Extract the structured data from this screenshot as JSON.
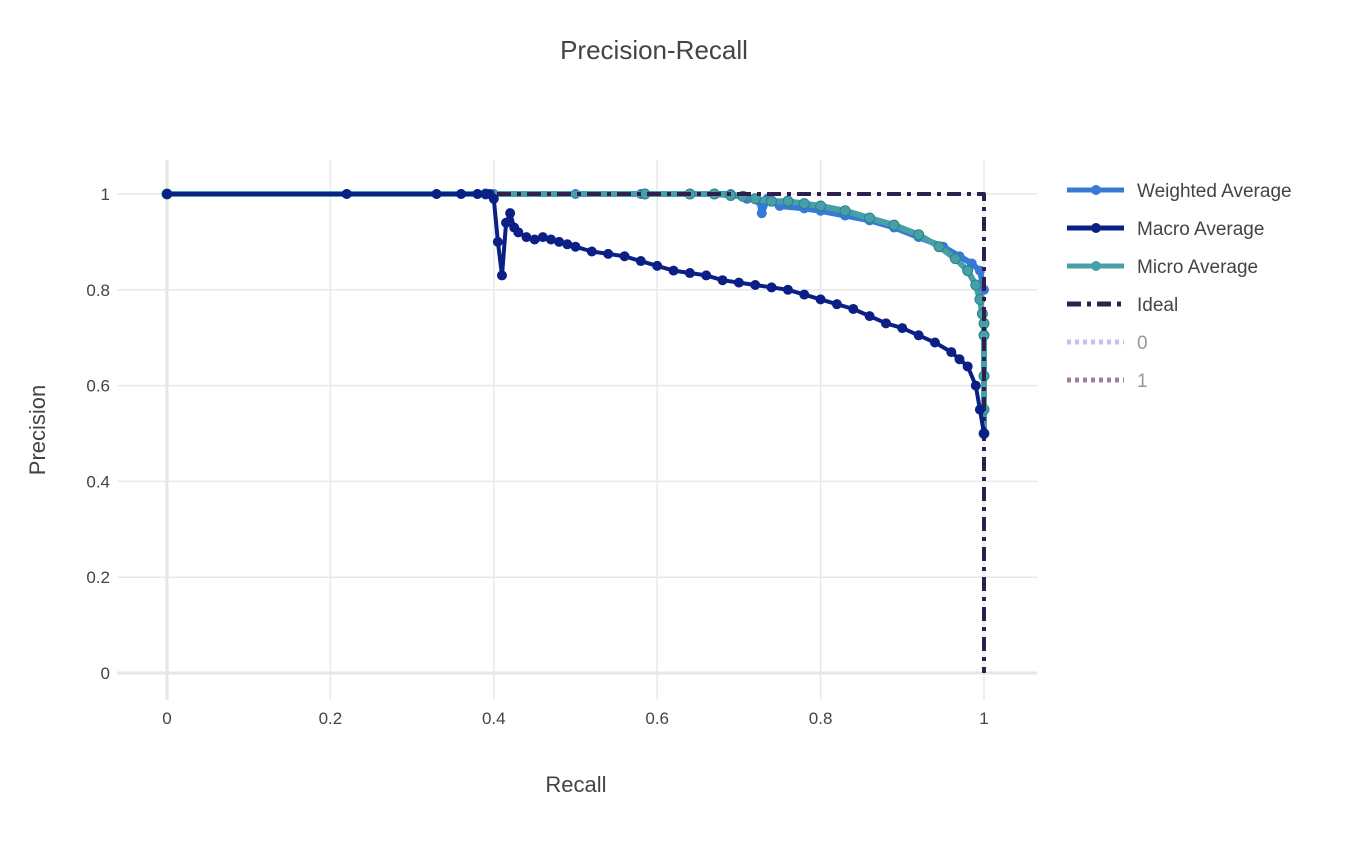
{
  "chart_data": {
    "type": "line",
    "title": "Precision-Recall",
    "xlabel": "Recall",
    "ylabel": "Precision",
    "xlim": [
      -0.06,
      1.06
    ],
    "ylim": [
      -0.06,
      1.07
    ],
    "xticks": [
      0,
      0.2,
      0.4,
      0.6,
      0.8,
      1
    ],
    "xtick_labels": [
      "0",
      "0.2",
      "0.4",
      "0.6",
      "0.8",
      "1"
    ],
    "yticks": [
      0,
      0.2,
      0.4,
      0.6,
      0.8,
      1
    ],
    "ytick_labels": [
      "0",
      "0.2",
      "0.4",
      "0.6",
      "0.8",
      "1"
    ],
    "grid": true,
    "legend_position": "right",
    "series": [
      {
        "name": "Weighted Average",
        "color": "#3878d6",
        "dash": "solid",
        "markers": true,
        "x": [
          0,
          0.22,
          0.33,
          0.36,
          0.38,
          0.39,
          0.4,
          0.5,
          0.58,
          0.64,
          0.67,
          0.69,
          0.71,
          0.72,
          0.725,
          0.728,
          0.735,
          0.75,
          0.78,
          0.8,
          0.83,
          0.86,
          0.89,
          0.92,
          0.95,
          0.97,
          0.985,
          0.995,
          1.0
        ],
        "y": [
          1,
          1,
          1,
          1,
          1,
          1,
          1,
          1,
          1,
          1,
          1,
          1,
          0.99,
          0.99,
          0.985,
          0.96,
          0.99,
          0.975,
          0.97,
          0.965,
          0.955,
          0.945,
          0.93,
          0.91,
          0.89,
          0.87,
          0.855,
          0.84,
          0.8
        ]
      },
      {
        "name": "Macro Average",
        "color": "#0b1f86",
        "dash": "solid",
        "markers": true,
        "x": [
          0,
          0.22,
          0.33,
          0.36,
          0.38,
          0.39,
          0.395,
          0.4,
          0.405,
          0.41,
          0.415,
          0.42,
          0.425,
          0.43,
          0.44,
          0.45,
          0.46,
          0.47,
          0.48,
          0.49,
          0.5,
          0.52,
          0.54,
          0.56,
          0.58,
          0.6,
          0.62,
          0.64,
          0.66,
          0.68,
          0.7,
          0.72,
          0.74,
          0.76,
          0.78,
          0.8,
          0.82,
          0.84,
          0.86,
          0.88,
          0.9,
          0.92,
          0.94,
          0.96,
          0.97,
          0.98,
          0.99,
          0.995,
          1.0
        ],
        "y": [
          1,
          1,
          1,
          1,
          1,
          1,
          1,
          0.99,
          0.9,
          0.83,
          0.94,
          0.96,
          0.93,
          0.92,
          0.91,
          0.905,
          0.91,
          0.905,
          0.9,
          0.895,
          0.89,
          0.88,
          0.875,
          0.87,
          0.86,
          0.85,
          0.84,
          0.835,
          0.83,
          0.82,
          0.815,
          0.81,
          0.805,
          0.8,
          0.79,
          0.78,
          0.77,
          0.76,
          0.745,
          0.73,
          0.72,
          0.705,
          0.69,
          0.67,
          0.655,
          0.64,
          0.6,
          0.55,
          0.5
        ]
      },
      {
        "name": "Micro Average",
        "color": "#46a0a8",
        "dash": "solid",
        "markers": true,
        "x": [
          0,
          0.39,
          0.585,
          0.64,
          0.67,
          0.69,
          0.705,
          0.72,
          0.74,
          0.76,
          0.78,
          0.8,
          0.83,
          0.86,
          0.89,
          0.92,
          0.945,
          0.965,
          0.98,
          0.99,
          0.995,
          0.998,
          1.0,
          1.0,
          1.0,
          1.0,
          1.0
        ],
        "y": [
          1,
          1,
          1,
          1,
          1,
          0.997,
          0.995,
          0.99,
          0.985,
          0.985,
          0.98,
          0.975,
          0.965,
          0.95,
          0.935,
          0.915,
          0.89,
          0.865,
          0.84,
          0.81,
          0.78,
          0.75,
          0.73,
          0.705,
          0.62,
          0.55,
          0.5
        ]
      },
      {
        "name": "Ideal",
        "color": "#2f1f4f",
        "dash": "dashdot",
        "markers": false,
        "x": [
          0,
          1,
          1
        ],
        "y": [
          1,
          1,
          0
        ]
      },
      {
        "name": "0",
        "color": "#c5c0ee",
        "dash": "dot",
        "markers": false,
        "faded": true,
        "x": [
          0,
          0.39
        ],
        "y": [
          1,
          1
        ]
      },
      {
        "name": "1",
        "color": "#9f7f9a",
        "dash": "dot",
        "markers": false,
        "faded": true,
        "x": [
          0,
          0.39
        ],
        "y": [
          1,
          1
        ]
      }
    ]
  }
}
